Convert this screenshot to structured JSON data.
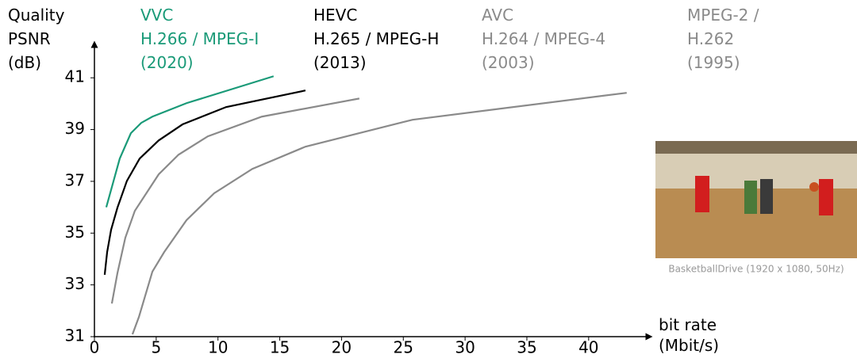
{
  "chart_data": {
    "type": "line",
    "y_label": "Quality\nPSNR\n(dB)",
    "x_label": "bit rate\n(Mbit/s)",
    "image_caption": "BasketballDrive (1920 x 1080, 50Hz)",
    "xlim": [
      0,
      44.7
    ],
    "ylim": [
      31,
      42.2
    ],
    "xticks": [
      0,
      5,
      10,
      15,
      20,
      25,
      30,
      35,
      40
    ],
    "yticks": [
      31,
      33,
      35,
      37,
      39,
      41
    ],
    "series": [
      {
        "name": "VVC\nH.266 / MPEG-I\n(2020)",
        "color": "#1a9a78",
        "x": [
          0.96,
          2.05,
          2.95,
          3.79,
          4.69,
          7.45,
          14.5
        ],
        "values": [
          36.0,
          37.88,
          38.86,
          39.26,
          39.5,
          40.02,
          41.06
        ]
      },
      {
        "name": "HEVC\nH.265 / MPEG-H\n(2013)",
        "color": "#000000",
        "x": [
          0.83,
          1.03,
          1.35,
          1.86,
          2.63,
          3.66,
          5.2,
          7.13,
          10.66,
          17.08
        ],
        "values": [
          33.39,
          34.27,
          35.13,
          35.98,
          37.02,
          37.88,
          38.58,
          39.2,
          39.87,
          40.51
        ]
      },
      {
        "name": "AVC\nH.264 / MPEG-4\n(2003)",
        "color": "#8a8a8a",
        "x": [
          1.41,
          1.86,
          2.5,
          3.27,
          5.2,
          6.81,
          9.18,
          13.55,
          21.44
        ],
        "values": [
          32.28,
          33.45,
          34.82,
          35.86,
          37.27,
          38.03,
          38.74,
          39.5,
          40.2
        ]
      },
      {
        "name": "MPEG-2 /\nH.262\n(1995)",
        "color": "#8a8a8a",
        "x": [
          3.08,
          3.6,
          4.69,
          5.65,
          7.45,
          9.69,
          12.78,
          17.08,
          25.75,
          43.08
        ],
        "values": [
          31.09,
          31.76,
          33.51,
          34.27,
          35.5,
          36.54,
          37.48,
          38.34,
          39.38,
          40.42
        ]
      }
    ]
  }
}
